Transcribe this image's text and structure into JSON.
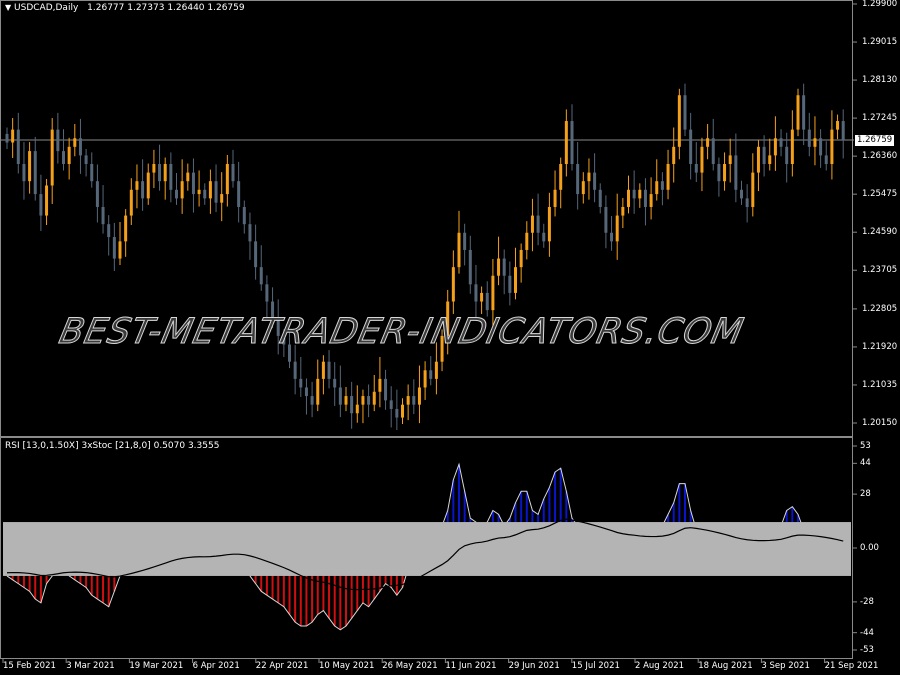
{
  "main": {
    "symbol_label": "USDCAD,Daily",
    "ohlc": "1.26777 1.27373 1.26440 1.26759",
    "current_price": "1.26759",
    "price_ticks": [
      "1.29900",
      "1.29015",
      "1.28130",
      "1.27245",
      "1.26360",
      "1.25475",
      "1.24590",
      "1.23705",
      "1.22805",
      "1.21920",
      "1.21035",
      "1.20150"
    ],
    "price_range": [
      1.2015,
      1.299
    ],
    "bull_color": "#f5a01a",
    "bear_color": "#56677a",
    "closes": [
      1.267,
      1.27,
      1.262,
      1.258,
      1.265,
      1.255,
      1.25,
      1.257,
      1.27,
      1.265,
      1.262,
      1.266,
      1.268,
      1.264,
      1.262,
      1.258,
      1.252,
      1.248,
      1.245,
      1.24,
      1.244,
      1.25,
      1.256,
      1.258,
      1.254,
      1.26,
      1.262,
      1.258,
      1.262,
      1.256,
      1.254,
      1.258,
      1.26,
      1.255,
      1.256,
      1.254,
      1.258,
      1.253,
      1.255,
      1.262,
      1.258,
      1.252,
      1.248,
      1.244,
      1.238,
      1.234,
      1.23,
      1.226,
      1.222,
      1.22,
      1.216,
      1.212,
      1.21,
      1.208,
      1.206,
      1.212,
      1.216,
      1.212,
      1.21,
      1.206,
      1.208,
      1.204,
      1.206,
      1.208,
      1.206,
      1.209,
      1.212,
      1.207,
      1.205,
      1.203,
      1.206,
      1.208,
      1.206,
      1.21,
      1.214,
      1.212,
      1.216,
      1.222,
      1.23,
      1.238,
      1.246,
      1.242,
      1.234,
      1.23,
      1.232,
      1.228,
      1.236,
      1.24,
      1.236,
      1.232,
      1.238,
      1.242,
      1.246,
      1.25,
      1.246,
      1.244,
      1.252,
      1.256,
      1.262,
      1.272,
      1.262,
      1.255,
      1.258,
      1.26,
      1.256,
      1.252,
      1.246,
      1.244,
      1.25,
      1.252,
      1.256,
      1.254,
      1.256,
      1.252,
      1.255,
      1.258,
      1.256,
      1.262,
      1.266,
      1.278,
      1.27,
      1.262,
      1.26,
      1.266,
      1.268,
      1.262,
      1.258,
      1.262,
      1.264,
      1.256,
      1.254,
      1.252,
      1.26,
      1.266,
      1.262,
      1.264,
      1.268,
      1.266,
      1.262,
      1.27,
      1.278,
      1.27,
      1.266,
      1.268,
      1.264,
      1.262,
      1.27,
      1.272,
      1.26759
    ]
  },
  "indicator": {
    "label": "RSI [13,0,1.50X] 3xStoc [21,8,0] 0.5070 3.3555",
    "ticks": [
      "53",
      "44",
      "28",
      "0.00",
      "-28",
      "-44",
      "-53"
    ],
    "tick_values": [
      53,
      44,
      28,
      0,
      -28,
      -44,
      -53
    ],
    "range": [
      -53,
      53
    ],
    "band": [
      -14,
      14
    ],
    "up_color": "#0a14c8",
    "down_color": "#d01010",
    "band_color": "#b4b4b4",
    "values": [
      -14,
      -16,
      -18,
      -20,
      -22,
      -26,
      -28,
      -18,
      -14,
      -12,
      -10,
      -14,
      -16,
      -18,
      -20,
      -24,
      -26,
      -28,
      -30,
      -22,
      -14,
      -10,
      -8,
      -6,
      -4,
      -2,
      0,
      2,
      4,
      6,
      4,
      2,
      0,
      -2,
      -4,
      -6,
      -4,
      -2,
      0,
      2,
      0,
      -4,
      -8,
      -14,
      -18,
      -22,
      -24,
      -26,
      -28,
      -30,
      -34,
      -38,
      -40,
      -40,
      -38,
      -34,
      -32,
      -36,
      -40,
      -42,
      -40,
      -36,
      -32,
      -28,
      -30,
      -26,
      -22,
      -18,
      -20,
      -24,
      -20,
      -10,
      -5,
      0,
      5,
      8,
      10,
      12,
      20,
      36,
      44,
      30,
      16,
      14,
      10,
      14,
      20,
      18,
      12,
      16,
      24,
      30,
      30,
      20,
      18,
      26,
      32,
      40,
      42,
      30,
      16,
      12,
      10,
      8,
      6,
      4,
      2,
      0,
      -2,
      2,
      4,
      6,
      4,
      6,
      8,
      10,
      12,
      18,
      24,
      34,
      34,
      20,
      10,
      8,
      6,
      4,
      2,
      0,
      -2,
      -4,
      -2,
      0,
      2,
      4,
      6,
      8,
      10,
      12,
      20,
      22,
      18,
      10,
      8,
      6,
      4,
      2,
      0,
      -2,
      -4
    ]
  },
  "dates": [
    "15 Feb 2021",
    "3 Mar 2021",
    "19 Mar 2021",
    "6 Apr 2021",
    "22 Apr 2021",
    "10 May 2021",
    "26 May 2021",
    "11 Jun 2021",
    "29 Jun 2021",
    "15 Jul 2021",
    "2 Aug 2021",
    "18 Aug 2021",
    "3 Sep 2021",
    "21 Sep 2021"
  ],
  "watermark": "BEST-METATRADER-INDICATORS.COM"
}
